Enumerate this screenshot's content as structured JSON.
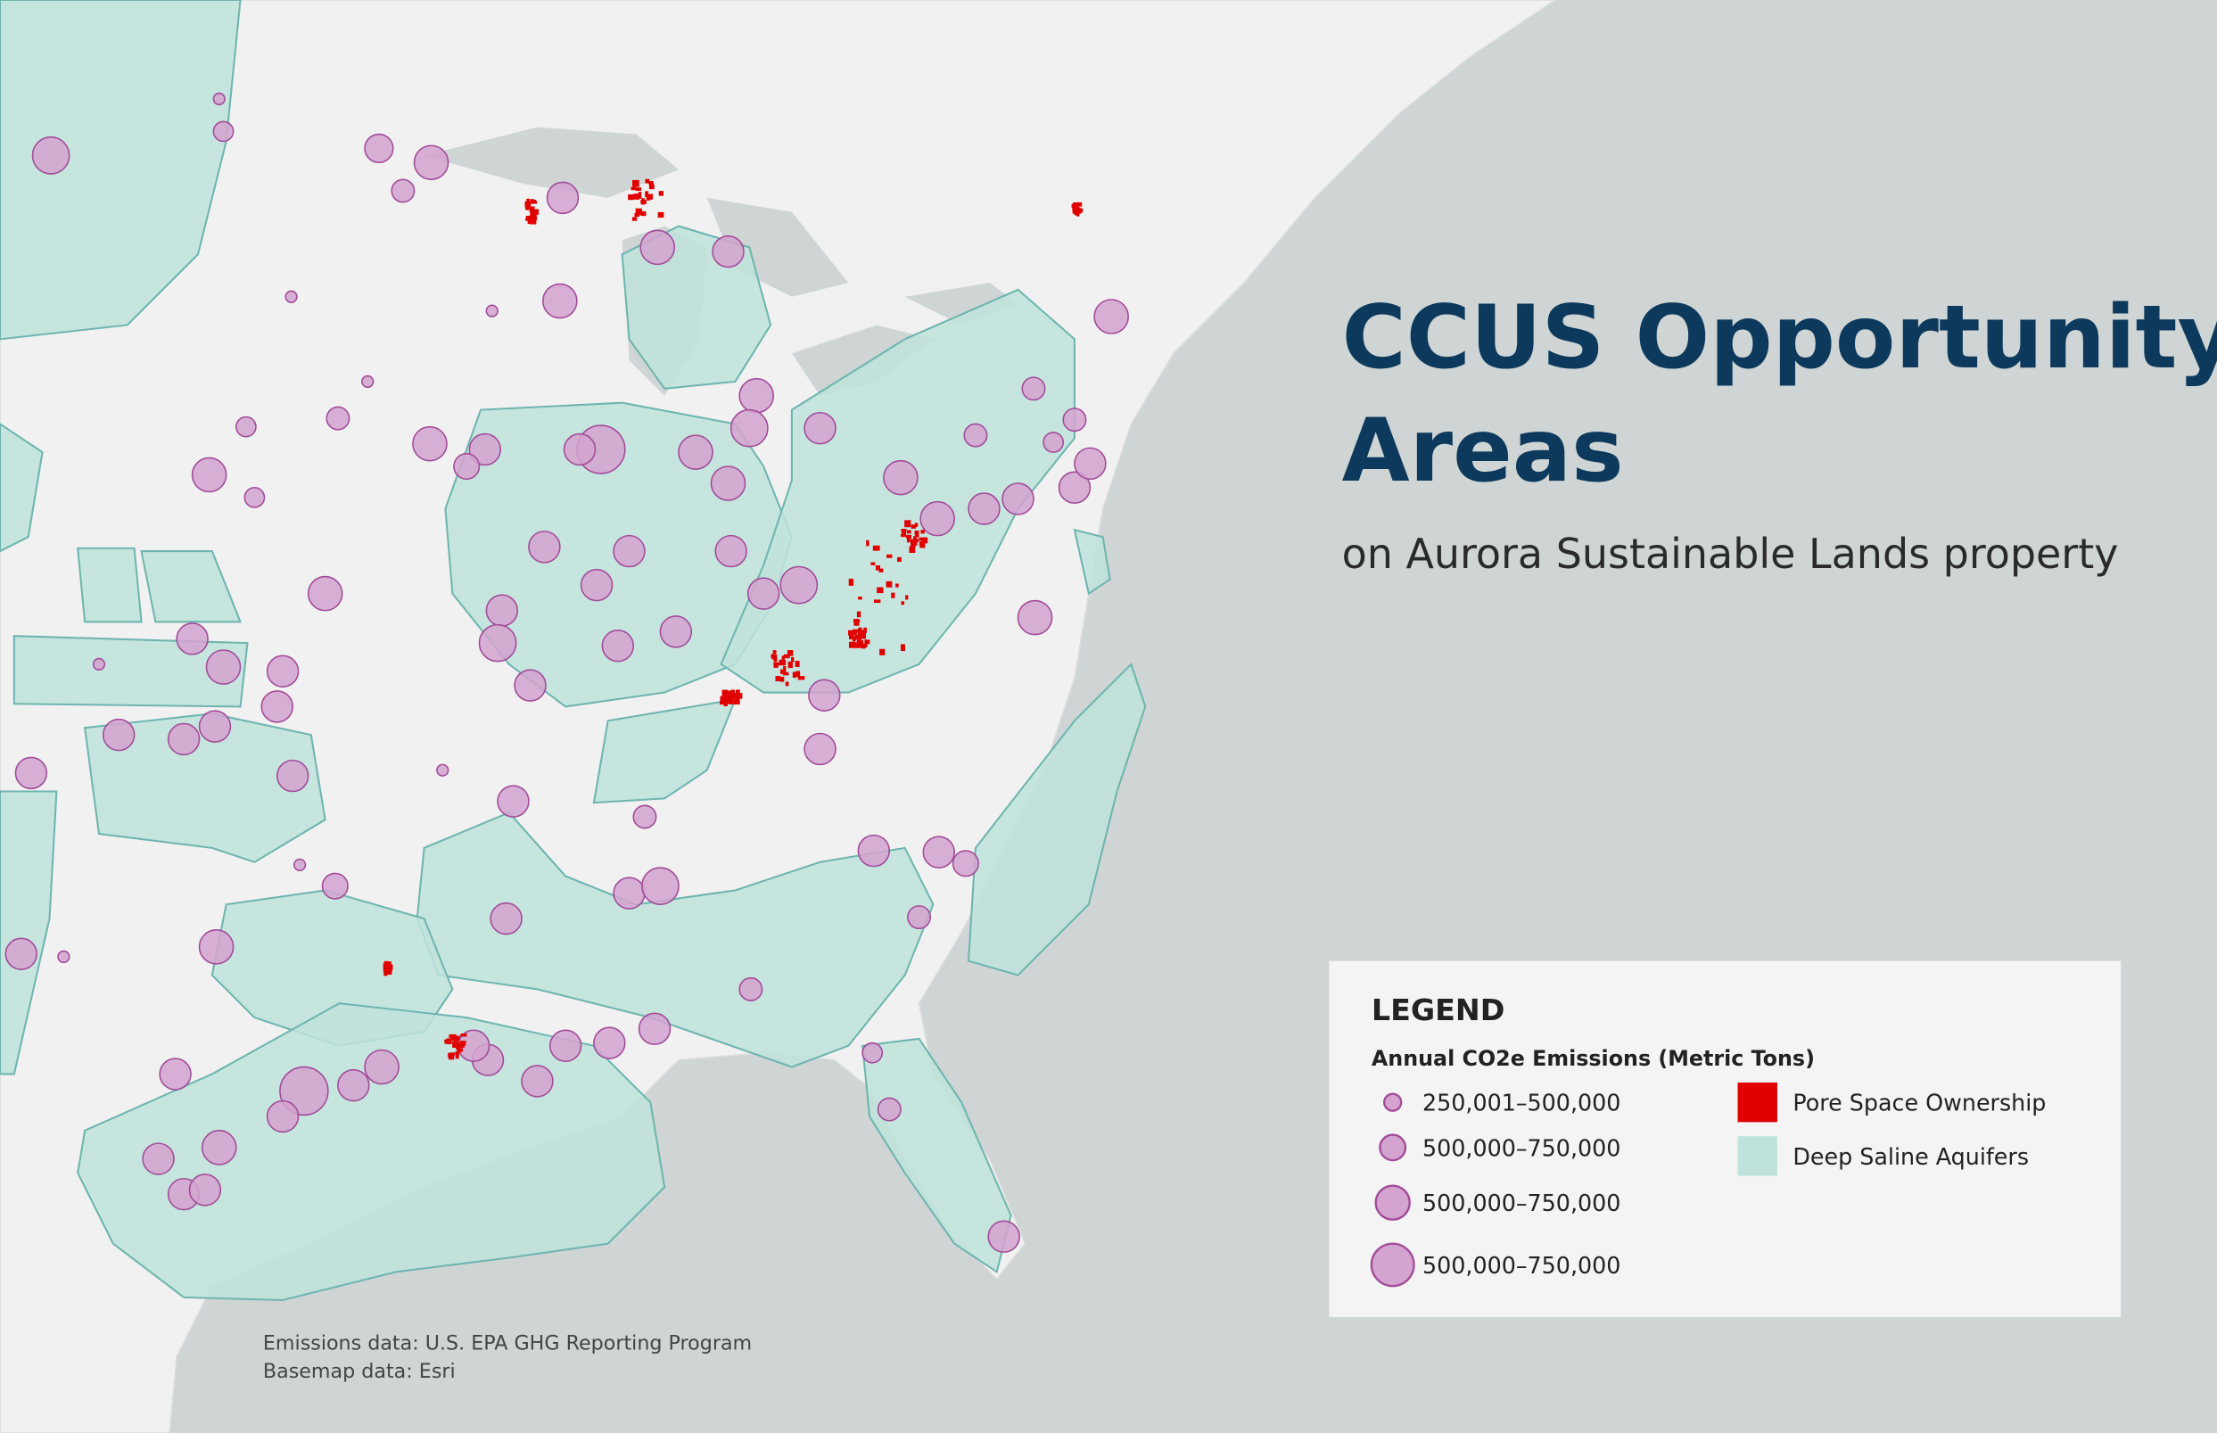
{
  "title": [
    "CCUS Opportunity",
    "Areas"
  ],
  "subtitle": "on Aurora Sustainable Lands property",
  "legend": {
    "title": "LEGEND",
    "emissions_heading": "Annual CO2e Emissions (Metric Tons)",
    "emission_classes": [
      "250,001–500,000",
      "500,000–750,000",
      "500,000–750,000",
      "500,000–750,000"
    ],
    "areas": [
      {
        "label": "Pore Space Ownership",
        "color": "#e00000"
      },
      {
        "label": "Deep Saline Aquifers",
        "color": "#bfe3dc"
      }
    ]
  },
  "credits": [
    "Emissions data: U.S. EPA GHG Reporting Program",
    "Basemap data: Esri"
  ]
}
